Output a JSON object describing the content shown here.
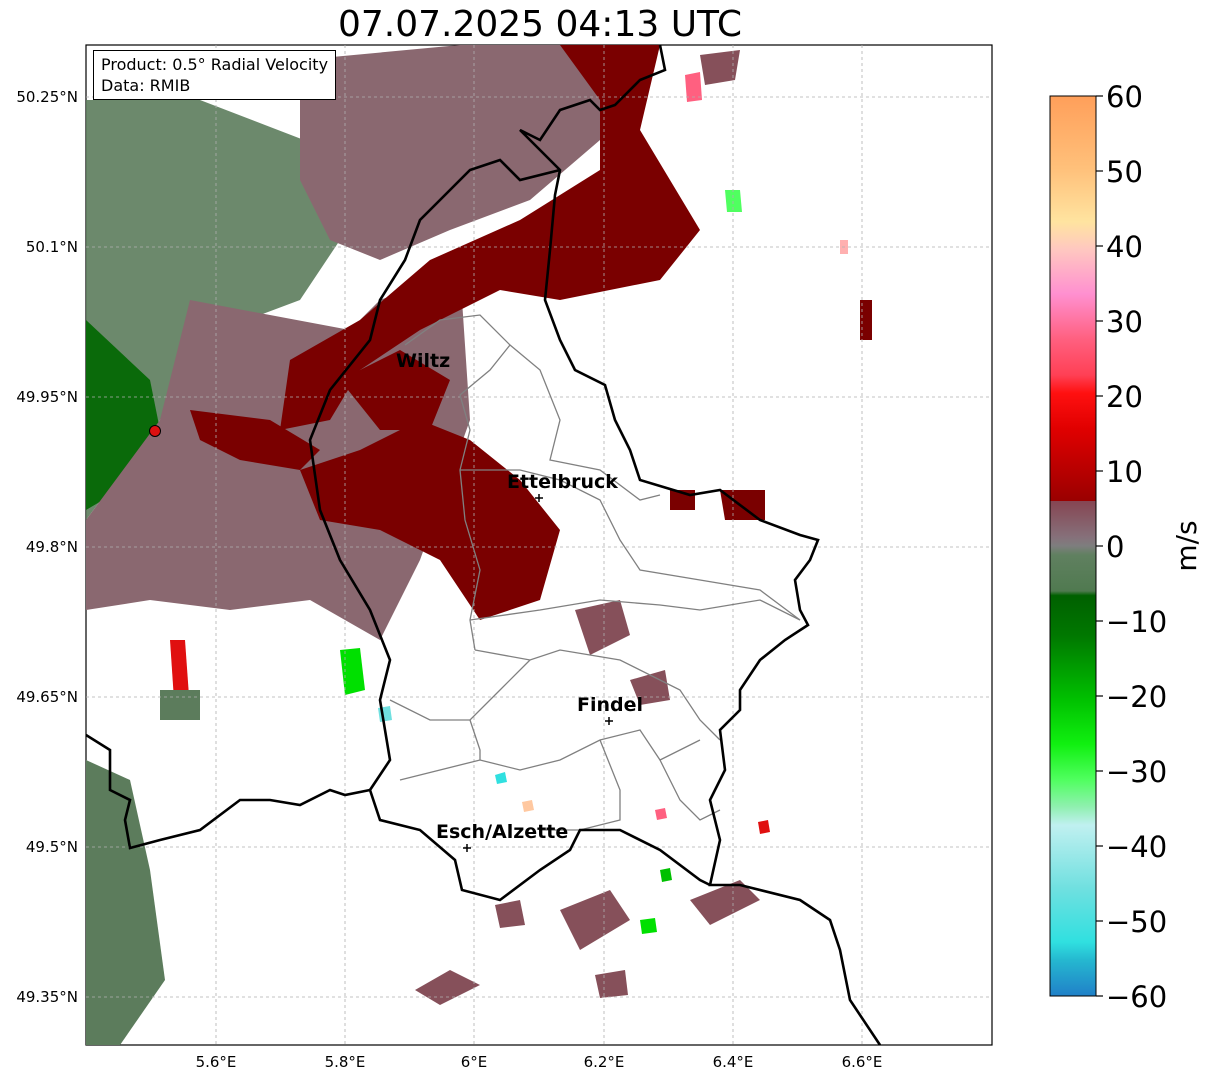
{
  "title": "07.07.2025 04:13 UTC",
  "info": {
    "product": "Product: 0.5° Radial Velocity",
    "data": "Data: RMIB"
  },
  "map": {
    "x_ticks": [
      "5.6°E",
      "5.8°E",
      "6°E",
      "6.2°E",
      "6.4°E",
      "6.6°E"
    ],
    "y_ticks": [
      "50.25°N",
      "50.1°N",
      "49.95°N",
      "49.8°N",
      "49.65°N",
      "49.5°N",
      "49.35°N"
    ],
    "radar_site_color": "#dd1111",
    "cities": [
      {
        "name": "Wiltz"
      },
      {
        "name": "Ettelbruck"
      },
      {
        "name": "Findel"
      },
      {
        "name": "Esch/Alzette"
      }
    ]
  },
  "colorbar": {
    "label": "m/s",
    "ticks": [
      "60",
      "50",
      "40",
      "30",
      "20",
      "10",
      "0",
      "−10",
      "−20",
      "−30",
      "−40",
      "−50",
      "−60"
    ],
    "range": [
      -60,
      60
    ],
    "colors": {
      "outbound_strong": "#ff9f5a",
      "outbound_moderate": "#e01010",
      "outbound_weak": "#7a0000",
      "near_zero_positive": "#86606a",
      "near_zero_negative": "#5e8060",
      "inbound_weak": "#006400",
      "inbound_moderate": "#00e000",
      "inbound_strong": "#2a9ad0"
    }
  }
}
